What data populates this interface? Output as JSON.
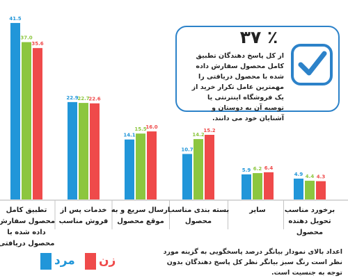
{
  "chart_data": {
    "type": "bar",
    "categories": [
      "تطبیق کامل محصول سفارش داده شده با محصول دریافتی",
      "خدمات پس از فروش مناسب",
      "ارسال سریع و به موقع محصول",
      "بسته بندی مناسب محصول",
      "سایر",
      "برخورد مناسب تحویل دهنده محصول"
    ],
    "series": [
      {
        "name": "مرد",
        "color": "#2196d9",
        "values": [
          41.5,
          22.9,
          14.1,
          10.7,
          5.9,
          4.9
        ]
      },
      {
        "name": "",
        "color": "#8cc63f",
        "values": [
          37.0,
          22.7,
          15.5,
          14.2,
          6.2,
          4.4
        ]
      },
      {
        "name": "زن",
        "color": "#ef4a4a",
        "values": [
          35.6,
          22.6,
          16.0,
          15.2,
          6.4,
          4.3
        ]
      }
    ],
    "value_labels": [
      [
        "41.5",
        "37.0",
        "35.6"
      ],
      [
        "22.9",
        "22.7",
        "22.6"
      ],
      [
        "14.1",
        "15.5",
        "16.0"
      ],
      [
        "10.7",
        "14.2",
        "15.2"
      ],
      [
        "5.9",
        "6.2",
        "6.4"
      ],
      [
        "4.9",
        "4.4",
        "4.3"
      ]
    ],
    "ylim": [
      0,
      42
    ],
    "grid": false,
    "legend_position": "bottom-left"
  },
  "callout": {
    "percent": "٪ ۳۷",
    "text": "از کل پاسخ دهندگان تطبیق کامل محصول سفارش داده شده با محصول دریافتی را مهمترین عامل تکرار خرید از یک فروشگاه اینترنتی یا توصیه آن به دوستان و آشنایان خود می دانند.",
    "icon": "check-icon",
    "accent": "#2c82c9"
  },
  "footnote": "اعداد بالای نمودار بیانگر درصد پاسخگویی به گزینه مورد نظر است رنگ سبز بیانگر نظر کل پاسخ دهندگان بدون توجه به جنسیت است.",
  "legend": {
    "male": {
      "label": "مرد",
      "color": "#2196d9"
    },
    "female": {
      "label": "زن",
      "color": "#ef4a4a"
    }
  }
}
